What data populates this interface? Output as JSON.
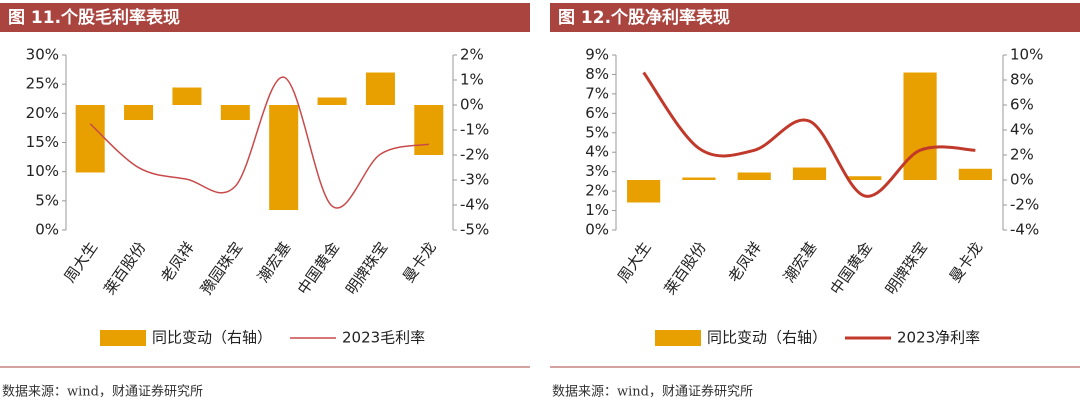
{
  "chart_data": [
    {
      "type": "bar_line",
      "title": "图 11.个股毛利率表现",
      "source": "数据来源：wind，财通证券研究所",
      "categories": [
        "周大生",
        "莱百股份",
        "老凤祥",
        "豫园珠宝",
        "潮宏基",
        "中国黄金",
        "明牌珠宝",
        "曼卡龙"
      ],
      "series": [
        {
          "name": "同比变动（右轴）",
          "kind": "bar",
          "axis": "y2",
          "color": "#E8A000",
          "values": [
            -2.7,
            -0.6,
            0.7,
            -0.6,
            -4.2,
            0.3,
            1.3,
            -2.0
          ]
        },
        {
          "name": "2023毛利率",
          "kind": "line",
          "color": "#C94A4A",
          "values": [
            18.2,
            10.7,
            8.7,
            7.5,
            26.2,
            4.1,
            13.0,
            14.7
          ]
        }
      ],
      "ylim": [
        0,
        30
      ],
      "yticks": [
        {
          "value": 0,
          "label": "0%"
        },
        {
          "value": 5,
          "label": "5%"
        },
        {
          "value": 10,
          "label": "10%"
        },
        {
          "value": 15,
          "label": "15%"
        },
        {
          "value": 20,
          "label": "20%"
        },
        {
          "value": 25,
          "label": "25%"
        },
        {
          "value": 30,
          "label": "30%"
        }
      ],
      "y2lim": [
        -5,
        2
      ],
      "y2ticks": [
        {
          "value": -5,
          "label": "-5%"
        },
        {
          "value": -4,
          "label": "-4%"
        },
        {
          "value": -3,
          "label": "-3%"
        },
        {
          "value": -2,
          "label": "-2%"
        },
        {
          "value": -1,
          "label": "-1%"
        },
        {
          "value": 0,
          "label": "0%"
        },
        {
          "value": 1,
          "label": "1%"
        },
        {
          "value": 2,
          "label": "2%"
        }
      ]
    },
    {
      "type": "bar_line",
      "title": "图 12.个股净利率表现",
      "source": "数据来源：wind，财通证券研究所",
      "categories": [
        "周大生",
        "莱百股份",
        "老凤祥",
        "潮宏基",
        "中国黄金",
        "明牌珠宝",
        "曼卡龙"
      ],
      "series": [
        {
          "name": "同比变动（右轴）",
          "kind": "bar",
          "axis": "y2",
          "color": "#E8A000",
          "values": [
            -1.8,
            0.2,
            0.6,
            1.0,
            0.3,
            8.6,
            0.9
          ]
        },
        {
          "name": "2023净利率",
          "kind": "line",
          "color": "#C0392B",
          "values": [
            8.1,
            4.2,
            4.1,
            5.6,
            1.75,
            4.1,
            4.1
          ]
        }
      ],
      "ylim": [
        0,
        9
      ],
      "yticks": [
        {
          "value": 0,
          "label": "0%"
        },
        {
          "value": 1,
          "label": "1%"
        },
        {
          "value": 2,
          "label": "2%"
        },
        {
          "value": 3,
          "label": "3%"
        },
        {
          "value": 4,
          "label": "4%"
        },
        {
          "value": 5,
          "label": "5%"
        },
        {
          "value": 6,
          "label": "6%"
        },
        {
          "value": 7,
          "label": "7%"
        },
        {
          "value": 8,
          "label": "8%"
        },
        {
          "value": 9,
          "label": "9%"
        }
      ],
      "y2lim": [
        -4,
        10
      ],
      "y2ticks": [
        {
          "value": -4,
          "label": "-4%"
        },
        {
          "value": -2,
          "label": "-2%"
        },
        {
          "value": 0,
          "label": "0%"
        },
        {
          "value": 2,
          "label": "2%"
        },
        {
          "value": 4,
          "label": "4%"
        },
        {
          "value": 6,
          "label": "6%"
        },
        {
          "value": 8,
          "label": "8%"
        },
        {
          "value": 10,
          "label": "10%"
        }
      ]
    }
  ]
}
